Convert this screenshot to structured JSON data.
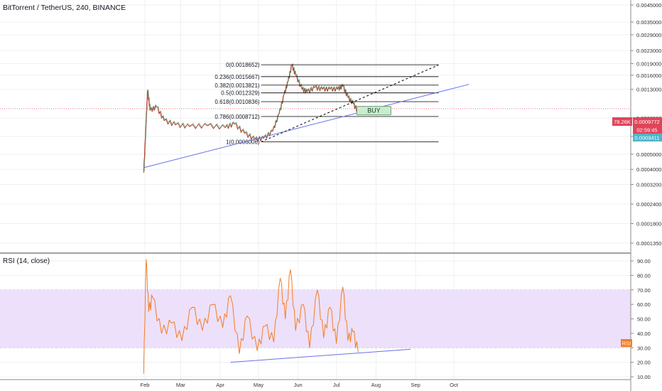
{
  "header": {
    "title": "BitTorrent / TetherUS, 240, BINANCE"
  },
  "rsi_panel": {
    "title": "RSI (14, close)",
    "tag": "RSI"
  },
  "price_axis": {
    "ticks": [
      "0.0045000",
      "0.0035000",
      "0.0029000",
      "0.0023000",
      "0.0019000",
      "0.0016000",
      "0.0013000",
      "0.0008500",
      "0.0006500",
      "0.0005000",
      "0.0004000",
      "0.0003200",
      "0.0002400",
      "0.0001800",
      "0.0001350"
    ],
    "badges": {
      "last_price": "78.26K",
      "last_price_value": "0.0009772",
      "countdown": "02:59:45",
      "second_value": "0.0009411"
    }
  },
  "rsi_axis": {
    "ticks": [
      "90.00",
      "80.00",
      "70.00",
      "60.00",
      "50.00",
      "40.00",
      "30.00",
      "20.00",
      "10.00"
    ]
  },
  "time_axis": {
    "labels": [
      "Feb",
      "Mar",
      "Apr",
      "May",
      "Jun",
      "Jul",
      "Aug",
      "Sep",
      "Oct"
    ]
  },
  "fibonacci": {
    "levels": [
      {
        "label": "0(0.0018652)",
        "value": 0.0018652
      },
      {
        "label": "0.236(0.0015667)",
        "value": 0.0015667
      },
      {
        "label": "0.382(0.0013821)",
        "value": 0.0013821
      },
      {
        "label": "0.5(0.0012329)",
        "value": 0.0012329
      },
      {
        "label": "0.618(0.0010836)",
        "value": 0.0010836
      },
      {
        "label": "0.786(0.0008712)",
        "value": 0.0008712
      },
      {
        "label": "1(0.0006006)",
        "value": 0.0006006
      }
    ]
  },
  "annotations": {
    "buy_label": "BUY"
  },
  "colors": {
    "fib_line": "#000000",
    "trendline": "#6a6ee8",
    "rsi_line": "#f57c21",
    "rsi_band": "#ede0fb",
    "candle_up": "#2e8b57",
    "candle_down": "#c0392b",
    "price_badge": "#e0455a",
    "second_badge": "#4fb5c8",
    "buy_box": "#c9ecd0"
  },
  "chart_data": {
    "type": "candlestick",
    "title": "BitTorrent / TetherUS, 240, BINANCE",
    "scale": "log",
    "price_axis_range": [
      0.000125,
      0.005
    ],
    "rsi_axis_range": [
      5,
      95
    ],
    "rsi_band": [
      30,
      70
    ],
    "price_path": [
      {
        "date": "2019-01-31",
        "price": 0.00038
      },
      {
        "date": "2019-02-02",
        "price": 0.00085
      },
      {
        "date": "2019-02-03",
        "price": 0.00128
      },
      {
        "date": "2019-02-05",
        "price": 0.00095
      },
      {
        "date": "2019-02-10",
        "price": 0.001
      },
      {
        "date": "2019-02-16",
        "price": 0.00082
      },
      {
        "date": "2019-02-25",
        "price": 0.00077
      },
      {
        "date": "2019-03-08",
        "price": 0.00075
      },
      {
        "date": "2019-03-22",
        "price": 0.00076
      },
      {
        "date": "2019-04-05",
        "price": 0.00074
      },
      {
        "date": "2019-04-12",
        "price": 0.00078
      },
      {
        "date": "2019-04-20",
        "price": 0.00068
      },
      {
        "date": "2019-04-28",
        "price": 0.00062
      },
      {
        "date": "2019-05-05",
        "price": 0.00063
      },
      {
        "date": "2019-05-12",
        "price": 0.0007
      },
      {
        "date": "2019-05-17",
        "price": 0.0009
      },
      {
        "date": "2019-05-21",
        "price": 0.0012
      },
      {
        "date": "2019-05-24",
        "price": 0.00145
      },
      {
        "date": "2019-05-27",
        "price": 0.00186
      },
      {
        "date": "2019-05-30",
        "price": 0.0016
      },
      {
        "date": "2019-06-04",
        "price": 0.0013
      },
      {
        "date": "2019-06-08",
        "price": 0.00125
      },
      {
        "date": "2019-06-14",
        "price": 0.00133
      },
      {
        "date": "2019-06-20",
        "price": 0.0013
      },
      {
        "date": "2019-06-26",
        "price": 0.0013
      },
      {
        "date": "2019-07-02",
        "price": 0.0013
      },
      {
        "date": "2019-07-06",
        "price": 0.00136
      },
      {
        "date": "2019-07-10",
        "price": 0.00115
      },
      {
        "date": "2019-07-14",
        "price": 0.00105
      },
      {
        "date": "2019-07-18",
        "price": 0.00093
      }
    ],
    "rsi_path": [
      {
        "date": "2019-01-31",
        "rsi": 12
      },
      {
        "date": "2019-02-02",
        "rsi": 91
      },
      {
        "date": "2019-02-04",
        "rsi": 55
      },
      {
        "date": "2019-02-07",
        "rsi": 65
      },
      {
        "date": "2019-02-14",
        "rsi": 40
      },
      {
        "date": "2019-02-22",
        "rsi": 47
      },
      {
        "date": "2019-03-02",
        "rsi": 35
      },
      {
        "date": "2019-03-10",
        "rsi": 58
      },
      {
        "date": "2019-03-18",
        "rsi": 42
      },
      {
        "date": "2019-03-26",
        "rsi": 60
      },
      {
        "date": "2019-04-03",
        "rsi": 44
      },
      {
        "date": "2019-04-09",
        "rsi": 66
      },
      {
        "date": "2019-04-16",
        "rsi": 26
      },
      {
        "date": "2019-04-22",
        "rsi": 52
      },
      {
        "date": "2019-04-30",
        "rsi": 28
      },
      {
        "date": "2019-05-06",
        "rsi": 45
      },
      {
        "date": "2019-05-13",
        "rsi": 34
      },
      {
        "date": "2019-05-18",
        "rsi": 78
      },
      {
        "date": "2019-05-22",
        "rsi": 50
      },
      {
        "date": "2019-05-26",
        "rsi": 84
      },
      {
        "date": "2019-05-30",
        "rsi": 42
      },
      {
        "date": "2019-06-05",
        "rsi": 60
      },
      {
        "date": "2019-06-10",
        "rsi": 30
      },
      {
        "date": "2019-06-16",
        "rsi": 70
      },
      {
        "date": "2019-06-21",
        "rsi": 37
      },
      {
        "date": "2019-06-26",
        "rsi": 58
      },
      {
        "date": "2019-07-01",
        "rsi": 33
      },
      {
        "date": "2019-07-06",
        "rsi": 72
      },
      {
        "date": "2019-07-10",
        "rsi": 35
      },
      {
        "date": "2019-07-14",
        "rsi": 41
      },
      {
        "date": "2019-07-18",
        "rsi": 27
      }
    ],
    "trendlines": {
      "price_support": [
        {
          "date": "2019-01-31",
          "price": 0.00041
        },
        {
          "date": "2019-10-13",
          "price": 0.0014
        }
      ],
      "projection_dashed": [
        {
          "date": "2019-05-03",
          "price": 0.0006
        },
        {
          "date": "2019-09-19",
          "price": 0.00186
        }
      ],
      "rsi_support": [
        {
          "date": "2019-04-09",
          "rsi": 20
        },
        {
          "date": "2019-08-28",
          "rsi": 29
        }
      ]
    }
  }
}
